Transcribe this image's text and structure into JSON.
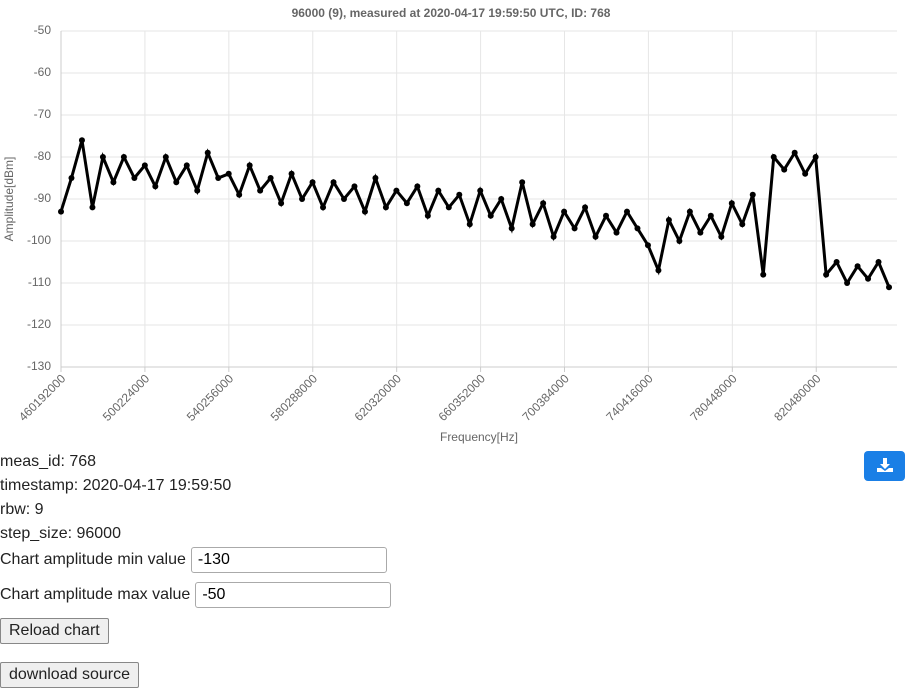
{
  "chart_data": {
    "type": "line",
    "title": "96000 (9), measured at 2020-04-17 19:59:50 UTC, ID: 768",
    "x_label": "Frequency[Hz]",
    "y_label": "Amplitude[dBm]",
    "xlim": [
      460192000,
      859000000
    ],
    "xticks": [
      460192000,
      500224000,
      540256000,
      580288000,
      620320000,
      660352000,
      700384000,
      740416000,
      780448000,
      820480000
    ],
    "ylim": [
      -130,
      -50
    ],
    "yticks": [
      -130,
      -120,
      -110,
      -100,
      -90,
      -80,
      -70,
      -60,
      -50
    ],
    "grid": true,
    "series": [
      {
        "name": "Amplitude",
        "color": "#000000",
        "x": [
          460192000,
          465192000,
          470192000,
          475192000,
          480192000,
          485192000,
          490192000,
          495192000,
          500192000,
          505192000,
          510192000,
          515192000,
          520192000,
          525192000,
          530192000,
          535192000,
          540192000,
          545192000,
          550192000,
          555192000,
          560192000,
          565192000,
          570192000,
          575192000,
          580192000,
          585192000,
          590192000,
          595192000,
          600192000,
          605192000,
          610192000,
          615192000,
          620192000,
          625192000,
          630192000,
          635192000,
          640192000,
          645192000,
          650192000,
          655192000,
          660192000,
          665192000,
          670192000,
          675192000,
          680192000,
          685192000,
          690192000,
          695192000,
          700192000,
          705192000,
          710192000,
          715192000,
          720192000,
          725192000,
          730192000,
          735192000,
          740192000,
          745192000,
          750192000,
          755192000,
          760192000,
          765192000,
          770192000,
          775192000,
          780192000,
          785192000,
          790192000,
          795192000,
          800192000,
          805192000,
          810192000,
          815192000,
          820192000,
          825192000,
          830192000,
          835192000,
          840192000,
          845192000,
          850192000,
          855192000
        ],
        "values": [
          -93,
          -85,
          -76,
          -92,
          -80,
          -86,
          -80,
          -85,
          -82,
          -87,
          -80,
          -86,
          -82,
          -88,
          -79,
          -85,
          -84,
          -89,
          -82,
          -88,
          -85,
          -91,
          -84,
          -90,
          -86,
          -92,
          -86,
          -90,
          -87,
          -93,
          -85,
          -92,
          -88,
          -91,
          -87,
          -94,
          -88,
          -92,
          -89,
          -96,
          -88,
          -94,
          -90,
          -97,
          -86,
          -96,
          -91,
          -99,
          -93,
          -97,
          -92,
          -99,
          -94,
          -98,
          -93,
          -97,
          -101,
          -107,
          -95,
          -100,
          -93,
          -98,
          -94,
          -99,
          -91,
          -96,
          -89,
          -108,
          -80,
          -83,
          -79,
          -84,
          -80,
          -108,
          -105,
          -110,
          -106,
          -109,
          -105,
          -111
        ]
      }
    ]
  },
  "info": [
    "meas_id: 768",
    "timestamp: 2020-04-17 19:59:50",
    "rbw: 9",
    "step_size: 96000"
  ],
  "controls": [
    {
      "label": "Chart amplitude min value",
      "value": "-130"
    },
    {
      "label": "Chart amplitude max value",
      "value": "-50"
    }
  ],
  "buttons": [
    "Reload chart",
    "download source"
  ]
}
